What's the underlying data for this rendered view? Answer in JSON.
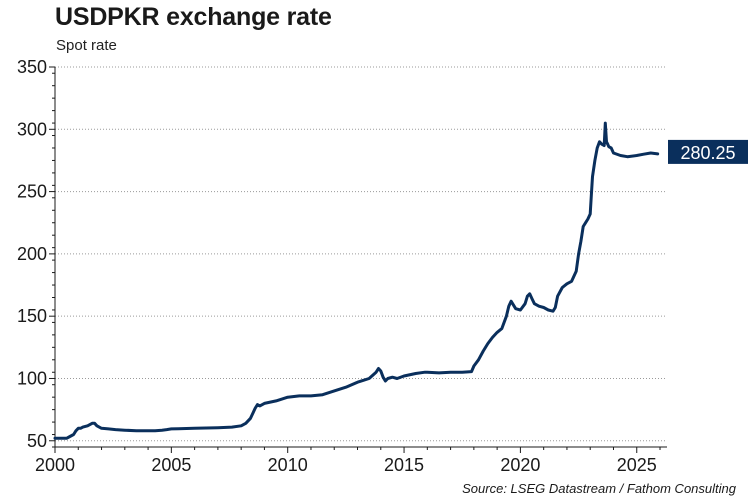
{
  "chart_data": {
    "type": "line",
    "title": "USDPKR exchange rate",
    "subtitle": "Spot rate",
    "source": "Source: LSEG Datastream / Fathom Consulting",
    "xlabel": "",
    "ylabel": "",
    "xlim": [
      2000,
      2026.3
    ],
    "ylim": [
      45,
      350
    ],
    "y_ticks": [
      50,
      100,
      150,
      200,
      250,
      300,
      350
    ],
    "x_ticks": [
      2000,
      2005,
      2010,
      2015,
      2020,
      2025
    ],
    "grid": "horizontal dotted",
    "line_color": "#0a2f5c",
    "end_label": "280.25",
    "series": [
      {
        "x": [
          2000.0,
          2000.5,
          2000.6,
          2000.8,
          2000.9,
          2001.0,
          2001.1,
          2001.2,
          2001.4,
          2001.6,
          2001.7,
          2001.8,
          2001.9,
          2002.0,
          2002.3,
          2002.6,
          2003.0,
          2003.5,
          2004.0,
          2004.3,
          2004.6,
          2004.8,
          2005.0,
          2005.3,
          2006.0,
          2007.0,
          2007.6,
          2008.0,
          2008.2,
          2008.4,
          2008.5,
          2008.6,
          2008.7,
          2008.8,
          2009.0,
          2009.5,
          2010.0,
          2010.5,
          2011.0,
          2011.5,
          2012.0,
          2012.5,
          2013.0,
          2013.5,
          2013.8,
          2013.9,
          2014.0,
          2014.1,
          2014.2,
          2014.3,
          2014.5,
          2014.7,
          2015.0,
          2015.5,
          2015.9,
          2016.0,
          2016.5,
          2017.0,
          2017.5,
          2017.9,
          2018.0,
          2018.2,
          2018.4,
          2018.6,
          2018.8,
          2019.0,
          2019.2,
          2019.4,
          2019.5,
          2019.6,
          2019.8,
          2020.0,
          2020.2,
          2020.3,
          2020.4,
          2020.5,
          2020.6,
          2020.8,
          2021.0,
          2021.2,
          2021.4,
          2021.5,
          2021.6,
          2021.8,
          2022.0,
          2022.2,
          2022.4,
          2022.5,
          2022.6,
          2022.7,
          2022.8,
          2022.9,
          2023.0,
          2023.05,
          2023.1,
          2023.2,
          2023.3,
          2023.4,
          2023.5,
          2023.6,
          2023.65,
          2023.7,
          2023.75,
          2023.8,
          2023.9,
          2024.0,
          2024.3,
          2024.6,
          2025.0,
          2025.3,
          2025.6,
          2025.9
        ],
        "y": [
          52,
          52,
          53,
          55,
          58,
          60,
          60,
          61,
          62,
          64,
          64,
          62,
          61,
          60,
          59.5,
          59,
          58.5,
          58,
          58,
          58,
          58.5,
          59,
          59.5,
          59.7,
          60,
          60.5,
          61,
          62,
          64,
          68,
          72,
          76,
          79,
          78,
          80,
          82,
          85,
          86,
          86,
          87,
          90,
          93,
          97,
          100,
          105,
          108,
          106,
          101,
          98,
          100,
          101,
          100,
          102,
          104,
          105,
          105,
          104.5,
          105,
          105,
          105.5,
          110,
          115,
          122,
          128,
          133,
          137,
          140,
          150,
          158,
          162,
          156,
          155,
          160,
          166,
          168,
          164,
          160,
          158,
          157,
          155,
          154,
          157,
          166,
          173,
          176,
          178,
          186,
          200,
          210,
          222,
          225,
          228,
          232,
          248,
          262,
          275,
          285,
          290,
          288,
          287,
          305,
          290,
          288,
          286,
          285,
          281,
          279,
          278,
          279,
          280,
          281,
          280.25
        ]
      }
    ]
  }
}
